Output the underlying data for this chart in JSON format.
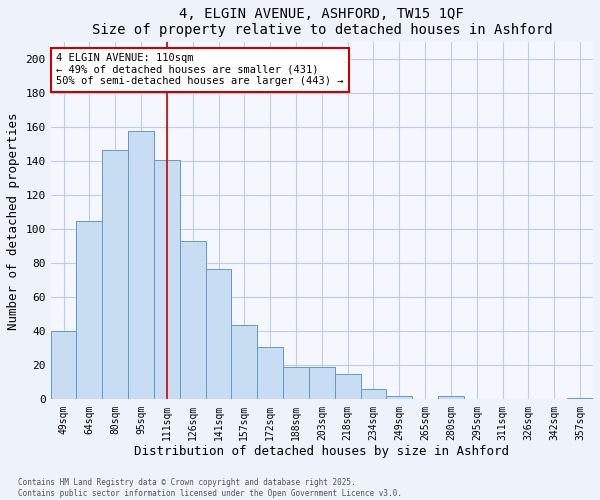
{
  "title": "4, ELGIN AVENUE, ASHFORD, TW15 1QF",
  "subtitle": "Size of property relative to detached houses in Ashford",
  "xlabel": "Distribution of detached houses by size in Ashford",
  "ylabel": "Number of detached properties",
  "bin_labels": [
    "49sqm",
    "64sqm",
    "80sqm",
    "95sqm",
    "111sqm",
    "126sqm",
    "141sqm",
    "157sqm",
    "172sqm",
    "188sqm",
    "203sqm",
    "218sqm",
    "234sqm",
    "249sqm",
    "265sqm",
    "280sqm",
    "295sqm",
    "311sqm",
    "326sqm",
    "342sqm",
    "357sqm"
  ],
  "bar_values": [
    40,
    105,
    147,
    158,
    141,
    93,
    77,
    44,
    31,
    19,
    19,
    15,
    6,
    2,
    0,
    2,
    0,
    0,
    0,
    0,
    1
  ],
  "bar_color": "#c8ddf2",
  "bar_edge_color": "#5b9bd5",
  "vline_x_index": 4,
  "vline_color": "#cc0000",
  "annotation_text": "4 ELGIN AVENUE: 110sqm\n← 49% of detached houses are smaller (431)\n50% of semi-detached houses are larger (443) →",
  "annotation_box_color": "#ffffff",
  "annotation_box_edge": "#cc0000",
  "ylim": [
    0,
    210
  ],
  "yticks": [
    0,
    20,
    40,
    60,
    80,
    100,
    120,
    140,
    160,
    180,
    200
  ],
  "footer_line1": "Contains HM Land Registry data © Crown copyright and database right 2025.",
  "footer_line2": "Contains public sector information licensed under the Open Government Licence v3.0.",
  "bg_color": "#eef2fb",
  "grid_color": "#c0cce0",
  "plot_bg_color": "#f5f7ff"
}
